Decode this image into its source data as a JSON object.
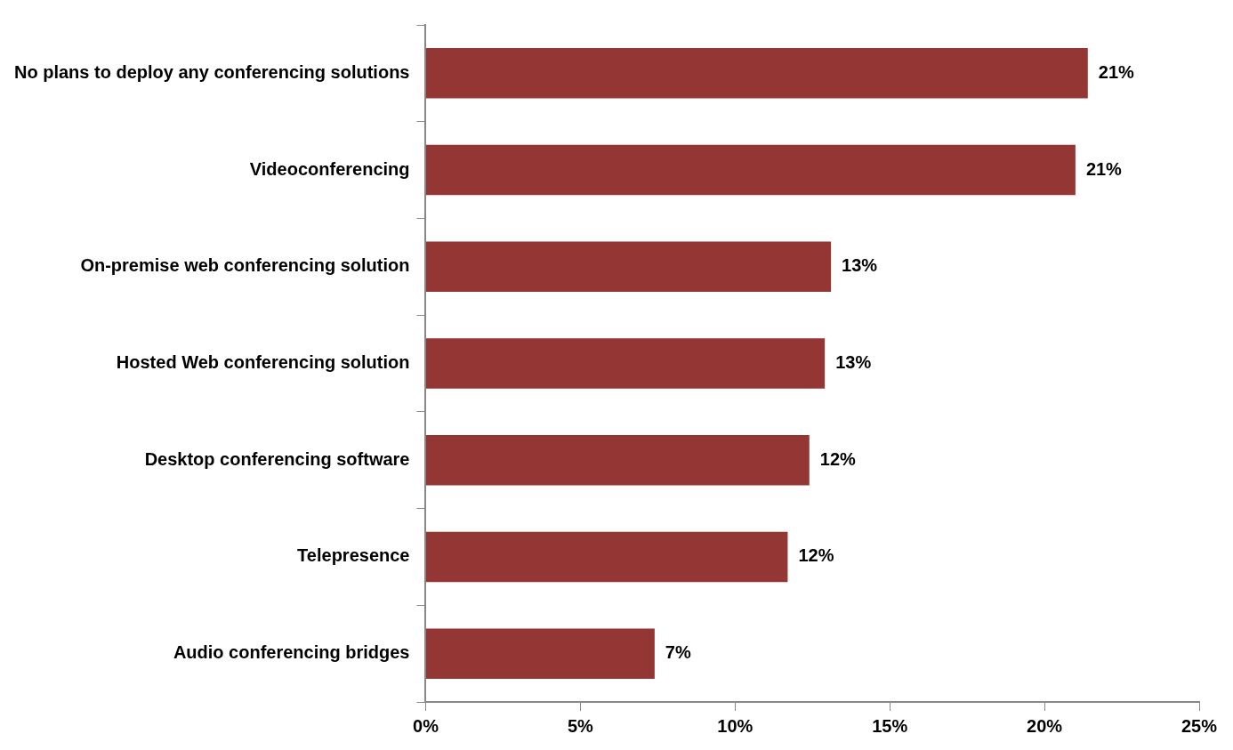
{
  "chart_data": {
    "type": "bar",
    "orientation": "horizontal",
    "categories": [
      "No plans to deploy any conferencing solutions",
      "Videoconferencing",
      "On-premise web conferencing solution",
      "Hosted Web conferencing solution",
      "Desktop conferencing software",
      "Telepresence",
      "Audio conferencing bridges"
    ],
    "values": [
      21.4,
      21,
      13.1,
      12.9,
      12.4,
      11.7,
      7.4
    ],
    "value_labels": [
      "21%",
      "21%",
      "13%",
      "13%",
      "12%",
      "12%",
      "7%"
    ],
    "color": "#943634",
    "xlim": [
      0,
      25
    ],
    "xticks": [
      {
        "value": 0,
        "label": "0%"
      },
      {
        "value": 5,
        "label": "5%"
      },
      {
        "value": 10,
        "label": "10%"
      },
      {
        "value": 15,
        "label": "15%"
      },
      {
        "value": 20,
        "label": "20%"
      },
      {
        "value": 25,
        "label": "25%"
      }
    ],
    "grid": false,
    "legend": false
  }
}
